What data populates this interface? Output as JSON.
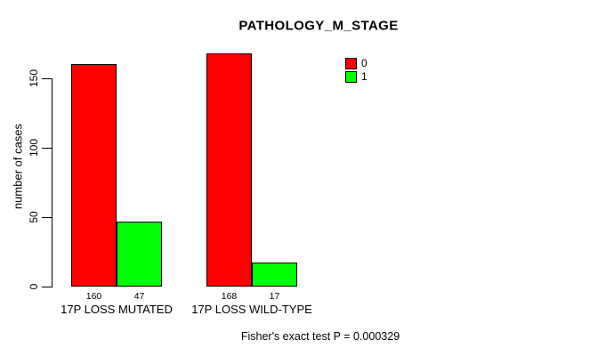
{
  "chart_data": {
    "type": "bar",
    "title": "PATHOLOGY_M_STAGE",
    "ylabel": "number of cases",
    "xlabel": "",
    "categories": [
      "17P LOSS MUTATED",
      "17P LOSS WILD-TYPE"
    ],
    "series": [
      {
        "name": "0",
        "color": "#FF0000",
        "values": [
          160,
          168
        ]
      },
      {
        "name": "1",
        "color": "#00FF00",
        "values": [
          47,
          17
        ]
      }
    ],
    "yticks": [
      0,
      50,
      100,
      150
    ],
    "ylim": [
      0,
      168
    ],
    "grid": false,
    "bar_values_shown": true,
    "bar_border_color": "#000000",
    "background_color": "#FFFFFF",
    "legend": {
      "position": "top-right",
      "entries": [
        {
          "label": "0",
          "color": "#FF0000"
        },
        {
          "label": "1",
          "color": "#00FF00"
        }
      ]
    },
    "footnote": "Fisher's exact test P = 0.000329"
  }
}
